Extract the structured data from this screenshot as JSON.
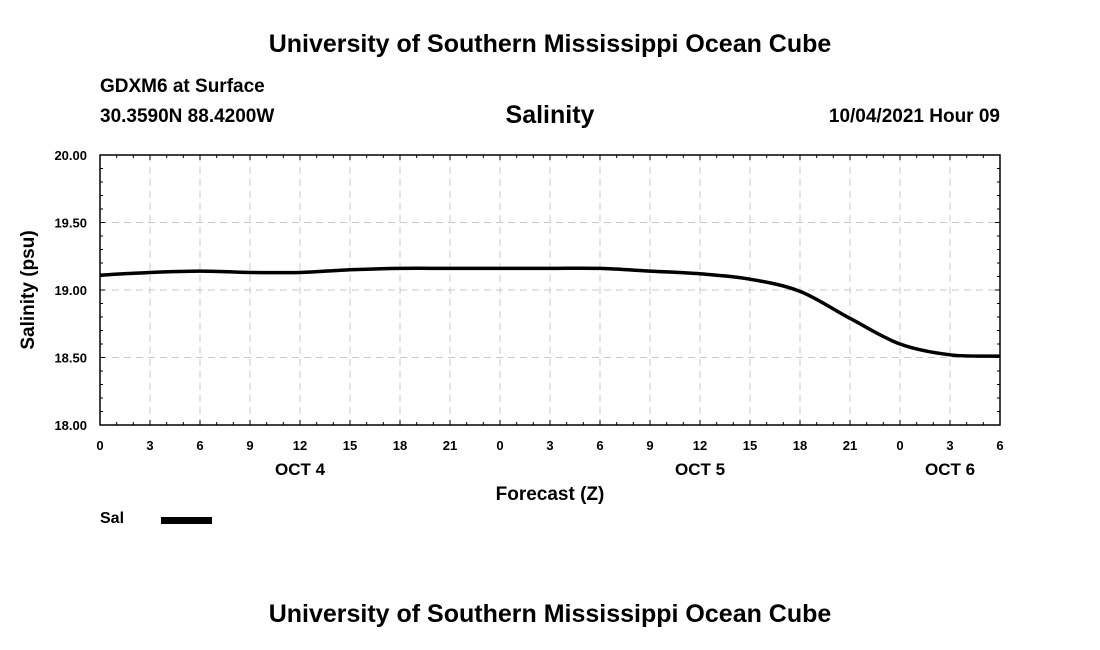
{
  "header": {
    "top_title": "University of Southern Mississippi Ocean Cube",
    "station": "GDXM6 at Surface",
    "coords": "30.3590N  88.4200W",
    "datetime": "10/04/2021 Hour 09"
  },
  "footer": {
    "bottom_title": "University of Southern Mississippi Ocean Cube"
  },
  "legend": {
    "label": "Sal"
  },
  "colors": {
    "line": "#000000",
    "grid": "#c8c8c8"
  },
  "chart_data": {
    "type": "line",
    "title": "Salinity",
    "xlabel": "Forecast (Z)",
    "ylabel": "Salinity (psu)",
    "xlim": [
      0,
      54
    ],
    "ylim": [
      18.0,
      20.0
    ],
    "grid": true,
    "x_ticks": [
      0,
      3,
      6,
      9,
      12,
      15,
      18,
      21,
      24,
      27,
      30,
      33,
      36,
      39,
      42,
      45,
      48,
      51,
      54
    ],
    "x_tick_labels": [
      "0",
      "3",
      "6",
      "9",
      "12",
      "15",
      "18",
      "21",
      "0",
      "3",
      "6",
      "9",
      "12",
      "15",
      "18",
      "21",
      "0",
      "3",
      "6"
    ],
    "y_ticks": [
      18.0,
      18.5,
      19.0,
      19.5,
      20.0
    ],
    "y_tick_labels": [
      "18.00",
      "18.50",
      "19.00",
      "19.50",
      "20.00"
    ],
    "day_labels": [
      {
        "x": 12,
        "label": "OCT 4"
      },
      {
        "x": 36,
        "label": "OCT 5"
      },
      {
        "x": 51,
        "label": "OCT 6"
      }
    ],
    "series": [
      {
        "name": "Sal",
        "x": [
          0,
          3,
          6,
          9,
          12,
          15,
          18,
          21,
          24,
          27,
          30,
          33,
          36,
          39,
          42,
          45,
          48,
          51,
          54
        ],
        "values": [
          19.11,
          19.13,
          19.14,
          19.13,
          19.13,
          19.15,
          19.16,
          19.16,
          19.16,
          19.16,
          19.16,
          19.14,
          19.12,
          19.08,
          18.99,
          18.79,
          18.6,
          18.52,
          18.51
        ]
      }
    ]
  }
}
